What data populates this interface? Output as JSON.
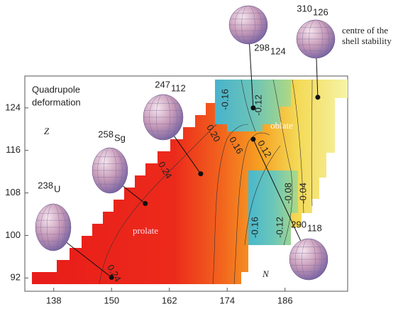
{
  "chart_data": {
    "type": "contour",
    "title_lines": [
      "Quadrupole",
      "deformation"
    ],
    "x_label": "N",
    "y_label": "Z",
    "xlim": [
      132,
      199
    ],
    "ylim": [
      89.5,
      130
    ],
    "xticks": [
      138,
      150,
      162,
      174,
      186
    ],
    "yticks": [
      92,
      100,
      108,
      116,
      124
    ],
    "region_labels": [
      "prolate",
      "oblate"
    ],
    "contour_levels": [
      0.24,
      0.24,
      0.2,
      0.16,
      0.12,
      -0.16,
      -0.12,
      -0.08,
      -0.04,
      -0.16,
      -0.12
    ],
    "contour_value_labels": [
      "0.24",
      "0.24",
      "0.20",
      "0.16",
      "0.12",
      "-0.16",
      "-0.12",
      "-0.08",
      "-0.04",
      "-0.16",
      "-0.12"
    ],
    "nuclides": [
      {
        "mass": "238",
        "element": "U",
        "x": 150,
        "y": 92.1
      },
      {
        "mass": "258",
        "element": "Sg",
        "x": 157,
        "y": 106
      },
      {
        "mass": "247",
        "element": "112",
        "x": 168.5,
        "y": 111.6
      },
      {
        "mass": "298",
        "element": "124",
        "x": 179.4,
        "y": 124
      },
      {
        "mass": "310",
        "element": "126",
        "x": 192.8,
        "y": 126
      },
      {
        "mass": "290",
        "element": "118",
        "x": 179.4,
        "y": 118.1
      }
    ],
    "annotation_lines": [
      "centre of the",
      "shell stability"
    ]
  }
}
